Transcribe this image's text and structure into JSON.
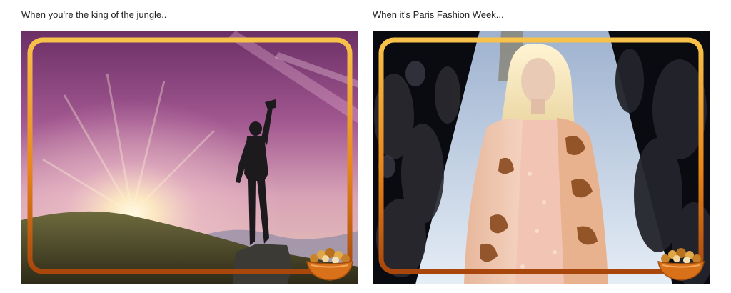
{
  "panels": [
    {
      "caption": "When you're the king of the jungle..",
      "photo": "mountain-sunset-silhouette-photo"
    },
    {
      "caption": "When it's Paris Fashion Week...",
      "photo": "runway-model-photo"
    }
  ],
  "frame": {
    "style": "orange-gradient-rounded-border",
    "colors": [
      "#f7c24a",
      "#e9861a",
      "#a8460c"
    ]
  },
  "sticker": {
    "name": "cereal-bowl-icon"
  }
}
